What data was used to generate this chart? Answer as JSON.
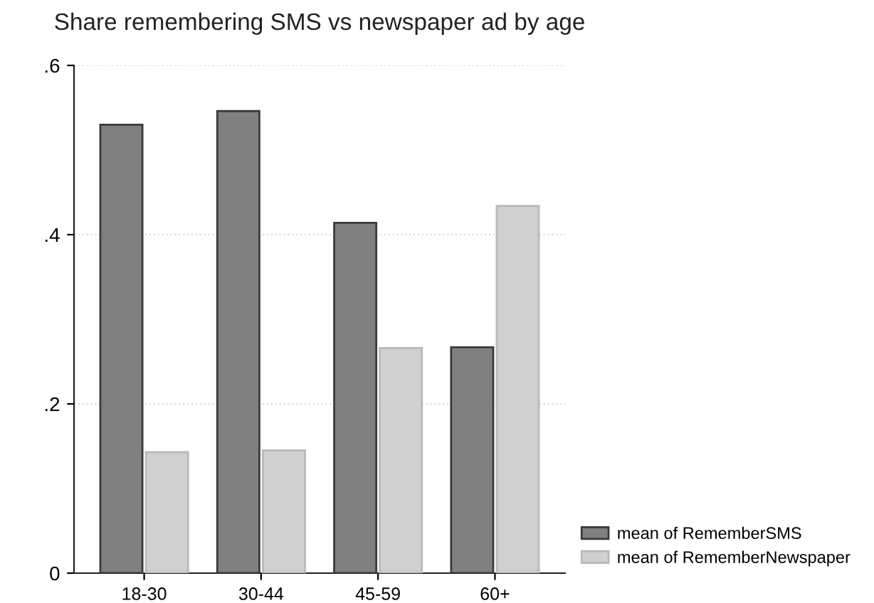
{
  "chart_data": {
    "type": "bar",
    "title": "Share remembering SMS vs newspaper ad by age",
    "categories": [
      "18-30",
      "30-44",
      "45-59",
      "60+"
    ],
    "series": [
      {
        "name": "mean of RememberSMS",
        "color": "#808080",
        "values": [
          0.53,
          0.546,
          0.414,
          0.267
        ]
      },
      {
        "name": "mean of RememberNewspaper",
        "color": "#d0d0d0",
        "values": [
          0.143,
          0.145,
          0.266,
          0.434
        ]
      }
    ],
    "ylim": [
      0,
      0.6
    ],
    "yticks": [
      {
        "value": 0,
        "label": "0"
      },
      {
        "value": 0.2,
        "label": ".2"
      },
      {
        "value": 0.4,
        "label": ".4"
      },
      {
        "value": 0.6,
        "label": ".6"
      }
    ],
    "grid": "y",
    "legend": "bottom right"
  }
}
